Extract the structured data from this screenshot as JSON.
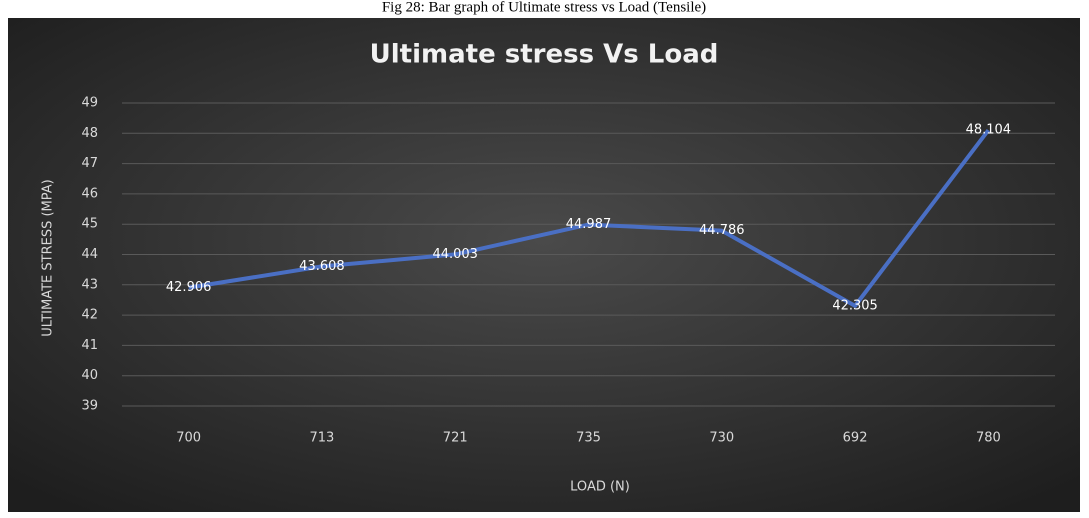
{
  "caption": "Fig 28: Bar graph of Ultimate stress vs Load (Tensile)",
  "chart_data": {
    "type": "line",
    "title": "Ultimate stress  Vs Load",
    "x_label": "LOAD (N)",
    "y_label": "ULTIMATE STRESS (MPA)",
    "categories": [
      "700",
      "713",
      "721",
      "735",
      "730",
      "692",
      "780"
    ],
    "series": [
      {
        "name": "Ultimate stress",
        "color": "#4a6fc4",
        "values": [
          42.906,
          43.608,
          44.003,
          44.987,
          44.786,
          42.305,
          48.104
        ]
      }
    ],
    "ylim": [
      39,
      49
    ],
    "yticks": [
      39,
      40,
      41,
      42,
      43,
      44,
      45,
      46,
      47,
      48,
      49
    ],
    "grid": true,
    "data_labels": true
  }
}
